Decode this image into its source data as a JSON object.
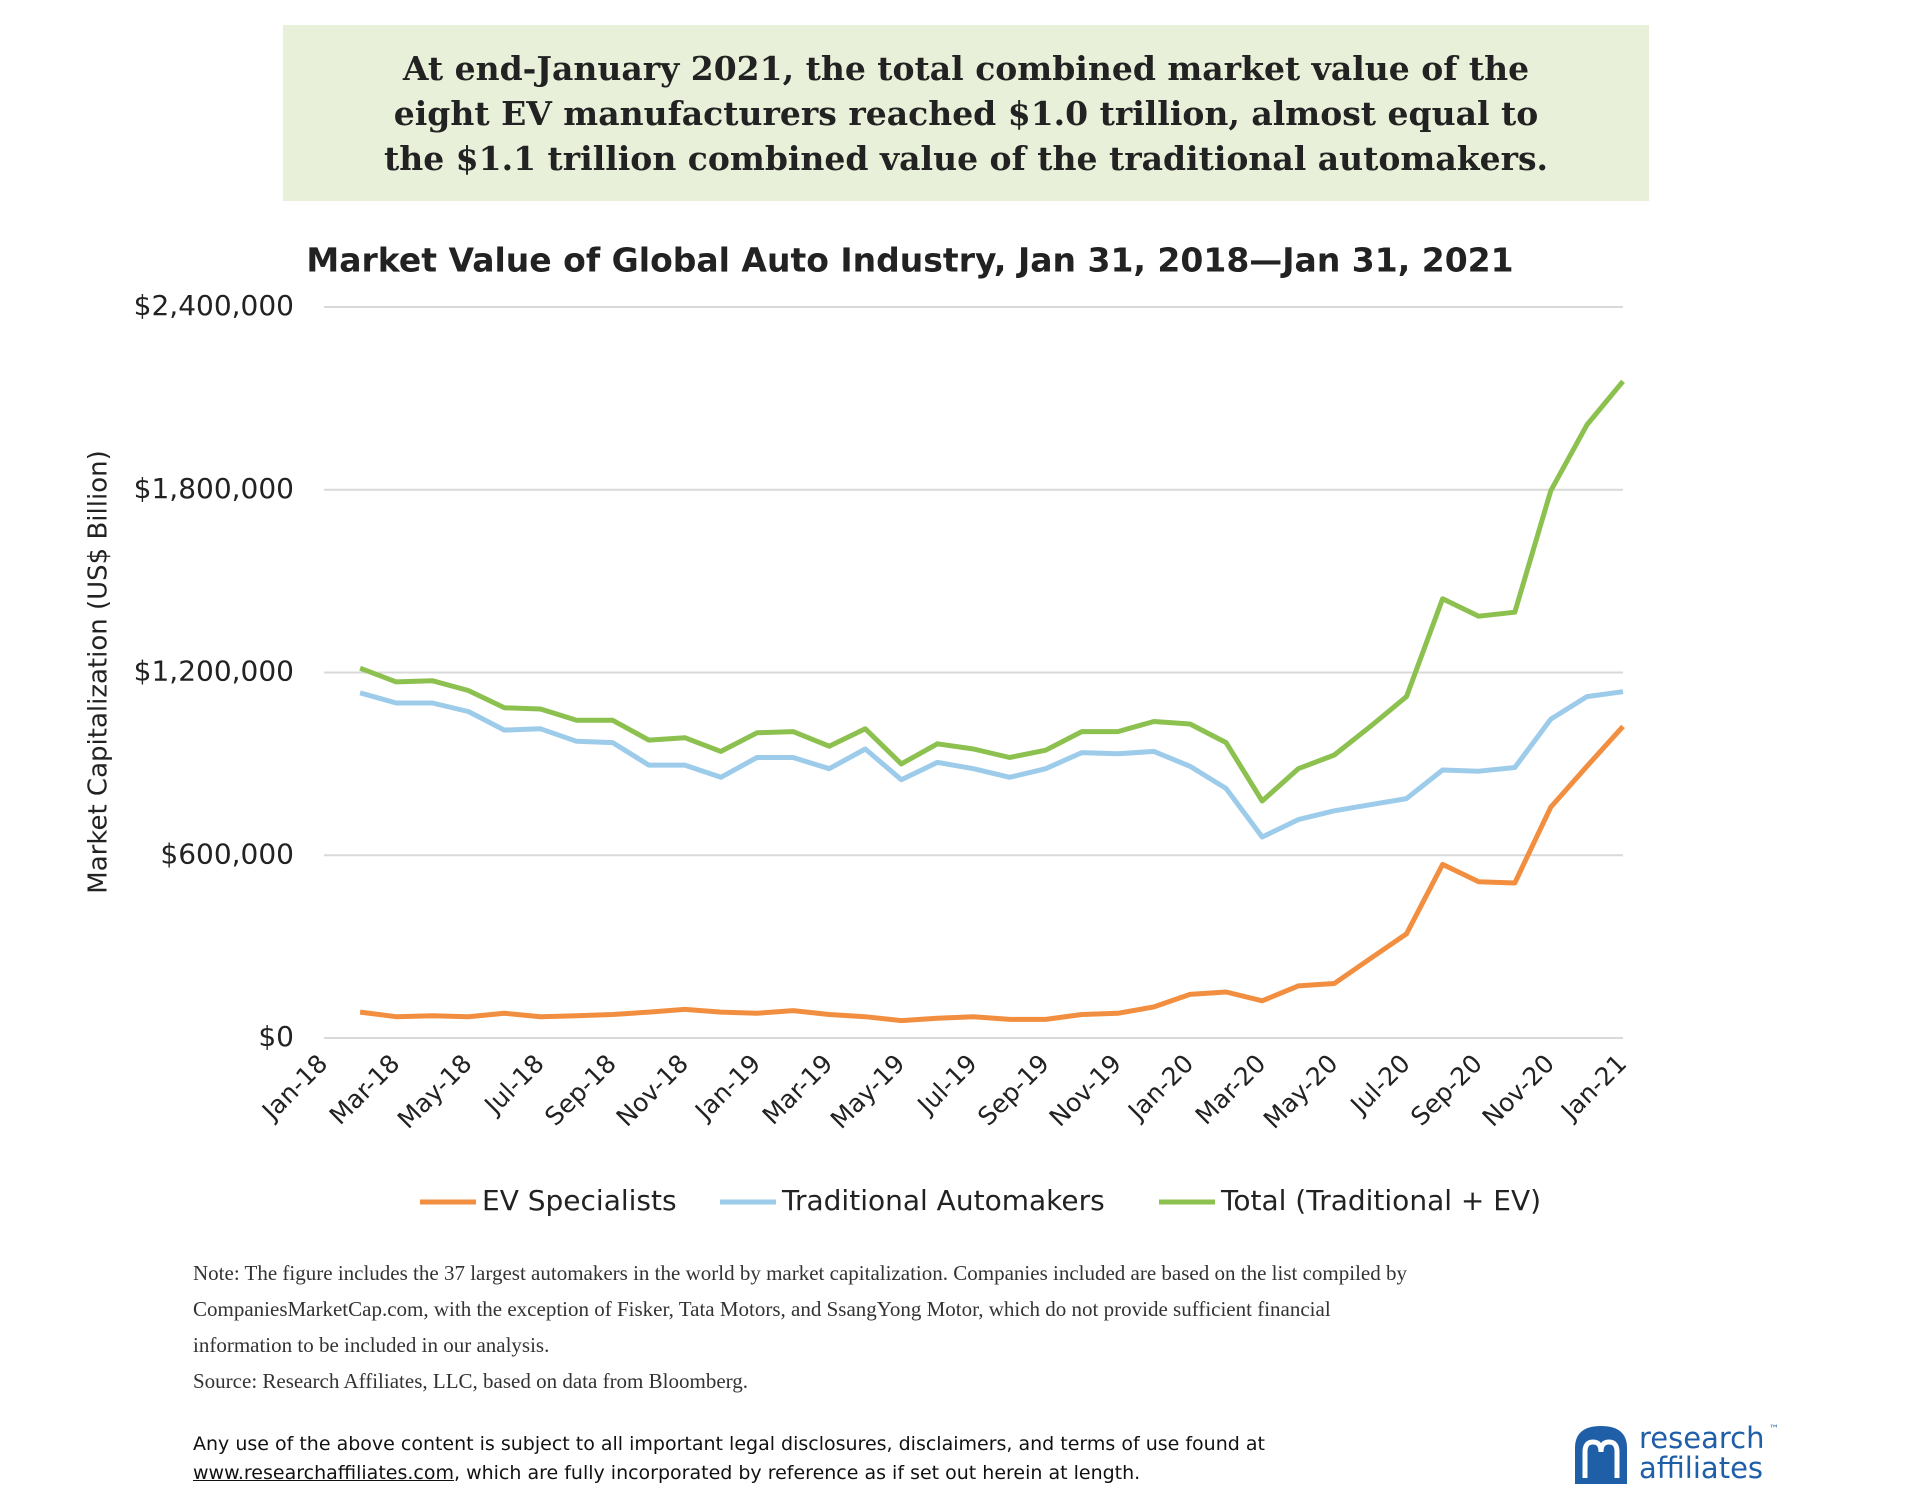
{
  "header": {
    "text": "At end-January 2021, the total combined market value of the eight EV manufacturers reached $1.0 trillion, almost equal to the $1.1 trillion combined value of the traditional automakers."
  },
  "chart_data": {
    "type": "line",
    "title": "Market Value of Global Auto Industry, Jan 31, 2018—Jan 31, 2021",
    "y_label": "Market Capitalization (US$ Billion)",
    "categories": [
      "Jan-18",
      null,
      "Mar-18",
      null,
      "May-18",
      null,
      "Jul-18",
      null,
      "Sep-18",
      null,
      "Nov-18",
      null,
      "Jan-19",
      null,
      "Mar-19",
      null,
      "May-19",
      null,
      "Jul-19",
      null,
      "Sep-19",
      null,
      "Nov-19",
      null,
      "Jan-20",
      null,
      "Mar-20",
      null,
      "May-20",
      null,
      "Jul-20",
      null,
      "Sep-20",
      null,
      "Nov-20",
      null,
      "Jan-21"
    ],
    "series": [
      {
        "name": "EV Specialists",
        "color": "#f28e3f",
        "values": [
          null,
          85000,
          70000,
          73000,
          70000,
          81000,
          70000,
          73000,
          77000,
          85000,
          94000,
          85000,
          81000,
          90000,
          77000,
          70000,
          57000,
          65000,
          70000,
          61000,
          61000,
          77000,
          81000,
          102000,
          143000,
          151000,
          122000,
          171000,
          179000,
          261000,
          342000,
          570000,
          513000,
          509000,
          758000,
          892000,
          1023000
        ]
      },
      {
        "name": "Traditional Automakers",
        "color": "#9dcbea",
        "values": [
          null,
          1133000,
          1100000,
          1100000,
          1072000,
          1011000,
          1015000,
          974000,
          970000,
          896000,
          896000,
          856000,
          921000,
          921000,
          884000,
          949000,
          848000,
          905000,
          884000,
          856000,
          884000,
          937000,
          933000,
          941000,
          892000,
          819000,
          660000,
          717000,
          746000,
          766000,
          786000,
          880000,
          876000,
          888000,
          1047000,
          1121000,
          1137000
        ]
      },
      {
        "name": "Total (Traditional + EV)",
        "color": "#8cc04f",
        "values": [
          null,
          1214000,
          1169000,
          1173000,
          1141000,
          1084000,
          1080000,
          1043000,
          1043000,
          978000,
          986000,
          941000,
          1002000,
          1006000,
          958000,
          1015000,
          900000,
          966000,
          949000,
          921000,
          945000,
          1006000,
          1006000,
          1039000,
          1031000,
          970000,
          778000,
          884000,
          929000,
          1023000,
          1121000,
          1442000,
          1385000,
          1398000,
          1797000,
          2013000,
          2156000
        ]
      }
    ],
    "ylim": [
      0,
      2400000
    ],
    "yticks": [
      {
        "value": 0,
        "label": "$0"
      },
      {
        "value": 600000,
        "label": "$600,000"
      },
      {
        "value": 1200000,
        "label": "$1,200,000"
      },
      {
        "value": 1800000,
        "label": "$1,800,000"
      },
      {
        "value": 2400000,
        "label": "$2,400,000"
      }
    ],
    "grid": true,
    "legend": "bottom"
  },
  "note": {
    "lines": [
      "Note: The figure includes the 37 largest automakers in the world by market capitalization. Companies included are based on the list compiled by",
      "CompaniesMarketCap.com, with the exception of Fisker, Tata Motors, and SsangYong Motor, which do not provide sufficient financial",
      "information to be included in our analysis."
    ],
    "source": "Source: Research Affiliates, LLC, based on data from Bloomberg."
  },
  "disclaimer": {
    "line1": "Any use of the above content is subject to all important legal disclosures, disclaimers, and terms of use found at",
    "link": "www.researchaffiliates.com",
    "rest": ", which are fully incorporated by reference as if set out herein at length."
  },
  "logo": {
    "line1": "research",
    "tm": "™",
    "line2": "affiliates"
  }
}
